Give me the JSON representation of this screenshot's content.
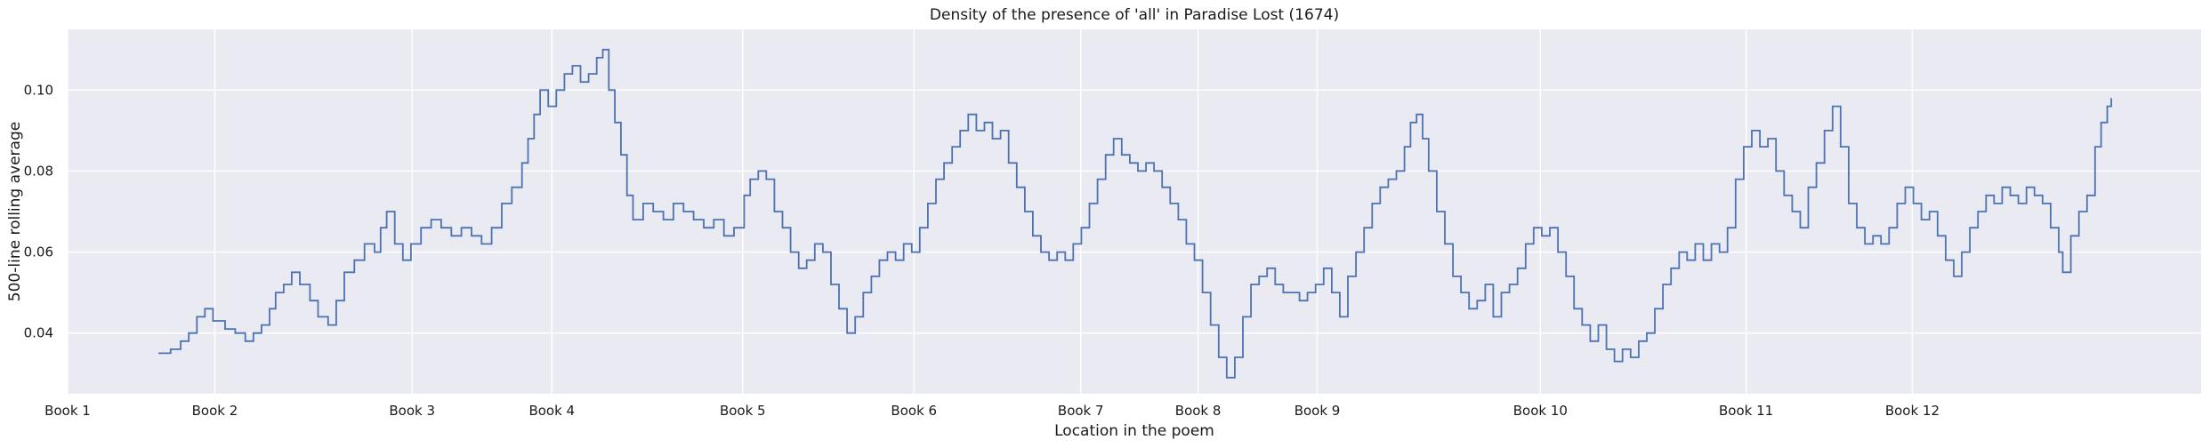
{
  "chart_data": {
    "type": "line",
    "title": "Density of the presence of 'all' in Paradise Lost (1674)",
    "xlabel": "Location in the poem",
    "ylabel": "500-line rolling average",
    "ylim": [
      0.025,
      0.115
    ],
    "xlim": [
      0,
      10565
    ],
    "grid": true,
    "yticks": [
      0.04,
      0.06,
      0.08,
      0.1
    ],
    "ytick_labels": [
      "0.04",
      "0.06",
      "0.08",
      "0.10"
    ],
    "xticks": [
      0,
      729,
      1706,
      2398,
      3343,
      4191,
      5017,
      5598,
      6188,
      7293,
      8312,
      9135
    ],
    "xtick_labels": [
      "Book 1",
      "Book 2",
      "Book 3",
      "Book 4",
      "Book 5",
      "Book 6",
      "Book 7",
      "Book 8",
      "Book 9",
      "Book 10",
      "Book 11",
      "Book 12"
    ],
    "colors": {
      "line": "#4c72b0",
      "plot_bg": "#eaeaf2",
      "grid": "#ffffff"
    },
    "series": [
      {
        "values": [
          [
            450,
            0.035
          ],
          [
            510,
            0.036
          ],
          [
            560,
            0.038
          ],
          [
            600,
            0.04
          ],
          [
            640,
            0.044
          ],
          [
            680,
            0.046
          ],
          [
            720,
            0.043
          ],
          [
            780,
            0.041
          ],
          [
            830,
            0.04
          ],
          [
            880,
            0.038
          ],
          [
            920,
            0.04
          ],
          [
            960,
            0.042
          ],
          [
            1000,
            0.046
          ],
          [
            1030,
            0.05
          ],
          [
            1070,
            0.052
          ],
          [
            1110,
            0.055
          ],
          [
            1150,
            0.052
          ],
          [
            1200,
            0.048
          ],
          [
            1240,
            0.044
          ],
          [
            1290,
            0.042
          ],
          [
            1330,
            0.048
          ],
          [
            1370,
            0.055
          ],
          [
            1420,
            0.058
          ],
          [
            1470,
            0.062
          ],
          [
            1520,
            0.06
          ],
          [
            1550,
            0.066
          ],
          [
            1580,
            0.07
          ],
          [
            1620,
            0.062
          ],
          [
            1660,
            0.058
          ],
          [
            1700,
            0.062
          ],
          [
            1750,
            0.066
          ],
          [
            1800,
            0.068
          ],
          [
            1850,
            0.066
          ],
          [
            1900,
            0.064
          ],
          [
            1950,
            0.066
          ],
          [
            2000,
            0.064
          ],
          [
            2050,
            0.062
          ],
          [
            2100,
            0.066
          ],
          [
            2150,
            0.072
          ],
          [
            2200,
            0.076
          ],
          [
            2250,
            0.082
          ],
          [
            2280,
            0.088
          ],
          [
            2310,
            0.094
          ],
          [
            2340,
            0.1
          ],
          [
            2380,
            0.096
          ],
          [
            2420,
            0.1
          ],
          [
            2460,
            0.104
          ],
          [
            2500,
            0.106
          ],
          [
            2540,
            0.102
          ],
          [
            2580,
            0.104
          ],
          [
            2620,
            0.108
          ],
          [
            2650,
            0.11
          ],
          [
            2680,
            0.1
          ],
          [
            2710,
            0.092
          ],
          [
            2740,
            0.084
          ],
          [
            2770,
            0.074
          ],
          [
            2800,
            0.068
          ],
          [
            2850,
            0.072
          ],
          [
            2900,
            0.07
          ],
          [
            2950,
            0.068
          ],
          [
            3000,
            0.072
          ],
          [
            3050,
            0.07
          ],
          [
            3100,
            0.068
          ],
          [
            3150,
            0.066
          ],
          [
            3200,
            0.068
          ],
          [
            3250,
            0.064
          ],
          [
            3300,
            0.066
          ],
          [
            3350,
            0.074
          ],
          [
            3380,
            0.078
          ],
          [
            3420,
            0.08
          ],
          [
            3460,
            0.078
          ],
          [
            3500,
            0.07
          ],
          [
            3540,
            0.066
          ],
          [
            3580,
            0.06
          ],
          [
            3620,
            0.056
          ],
          [
            3660,
            0.058
          ],
          [
            3700,
            0.062
          ],
          [
            3740,
            0.06
          ],
          [
            3780,
            0.052
          ],
          [
            3820,
            0.046
          ],
          [
            3860,
            0.04
          ],
          [
            3900,
            0.044
          ],
          [
            3940,
            0.05
          ],
          [
            3980,
            0.054
          ],
          [
            4020,
            0.058
          ],
          [
            4060,
            0.06
          ],
          [
            4100,
            0.058
          ],
          [
            4140,
            0.062
          ],
          [
            4180,
            0.06
          ],
          [
            4220,
            0.066
          ],
          [
            4260,
            0.072
          ],
          [
            4300,
            0.078
          ],
          [
            4340,
            0.082
          ],
          [
            4380,
            0.086
          ],
          [
            4420,
            0.09
          ],
          [
            4460,
            0.094
          ],
          [
            4500,
            0.09
          ],
          [
            4540,
            0.092
          ],
          [
            4580,
            0.088
          ],
          [
            4620,
            0.09
          ],
          [
            4660,
            0.082
          ],
          [
            4700,
            0.076
          ],
          [
            4740,
            0.07
          ],
          [
            4780,
            0.064
          ],
          [
            4820,
            0.06
          ],
          [
            4860,
            0.058
          ],
          [
            4900,
            0.06
          ],
          [
            4940,
            0.058
          ],
          [
            4980,
            0.062
          ],
          [
            5020,
            0.066
          ],
          [
            5060,
            0.072
          ],
          [
            5100,
            0.078
          ],
          [
            5140,
            0.084
          ],
          [
            5180,
            0.088
          ],
          [
            5220,
            0.084
          ],
          [
            5260,
            0.082
          ],
          [
            5300,
            0.08
          ],
          [
            5340,
            0.082
          ],
          [
            5380,
            0.08
          ],
          [
            5420,
            0.076
          ],
          [
            5460,
            0.072
          ],
          [
            5500,
            0.068
          ],
          [
            5540,
            0.062
          ],
          [
            5580,
            0.058
          ],
          [
            5620,
            0.05
          ],
          [
            5660,
            0.042
          ],
          [
            5700,
            0.034
          ],
          [
            5740,
            0.029
          ],
          [
            5780,
            0.034
          ],
          [
            5820,
            0.044
          ],
          [
            5860,
            0.052
          ],
          [
            5900,
            0.054
          ],
          [
            5940,
            0.056
          ],
          [
            5980,
            0.052
          ],
          [
            6020,
            0.05
          ],
          [
            6060,
            0.05
          ],
          [
            6100,
            0.048
          ],
          [
            6140,
            0.05
          ],
          [
            6180,
            0.052
          ],
          [
            6220,
            0.056
          ],
          [
            6260,
            0.05
          ],
          [
            6300,
            0.044
          ],
          [
            6340,
            0.054
          ],
          [
            6380,
            0.06
          ],
          [
            6420,
            0.066
          ],
          [
            6460,
            0.072
          ],
          [
            6500,
            0.076
          ],
          [
            6540,
            0.078
          ],
          [
            6580,
            0.08
          ],
          [
            6620,
            0.086
          ],
          [
            6650,
            0.092
          ],
          [
            6680,
            0.094
          ],
          [
            6710,
            0.088
          ],
          [
            6740,
            0.08
          ],
          [
            6780,
            0.07
          ],
          [
            6820,
            0.062
          ],
          [
            6860,
            0.054
          ],
          [
            6900,
            0.05
          ],
          [
            6940,
            0.046
          ],
          [
            6980,
            0.048
          ],
          [
            7020,
            0.052
          ],
          [
            7060,
            0.044
          ],
          [
            7100,
            0.05
          ],
          [
            7140,
            0.052
          ],
          [
            7180,
            0.056
          ],
          [
            7220,
            0.062
          ],
          [
            7260,
            0.066
          ],
          [
            7300,
            0.064
          ],
          [
            7340,
            0.066
          ],
          [
            7380,
            0.06
          ],
          [
            7420,
            0.054
          ],
          [
            7460,
            0.046
          ],
          [
            7500,
            0.042
          ],
          [
            7540,
            0.038
          ],
          [
            7580,
            0.042
          ],
          [
            7620,
            0.036
          ],
          [
            7660,
            0.033
          ],
          [
            7700,
            0.036
          ],
          [
            7740,
            0.034
          ],
          [
            7780,
            0.038
          ],
          [
            7820,
            0.04
          ],
          [
            7860,
            0.046
          ],
          [
            7900,
            0.052
          ],
          [
            7940,
            0.056
          ],
          [
            7980,
            0.06
          ],
          [
            8020,
            0.058
          ],
          [
            8060,
            0.062
          ],
          [
            8100,
            0.058
          ],
          [
            8140,
            0.062
          ],
          [
            8180,
            0.06
          ],
          [
            8220,
            0.066
          ],
          [
            8260,
            0.078
          ],
          [
            8300,
            0.086
          ],
          [
            8340,
            0.09
          ],
          [
            8380,
            0.086
          ],
          [
            8420,
            0.088
          ],
          [
            8460,
            0.08
          ],
          [
            8500,
            0.074
          ],
          [
            8540,
            0.07
          ],
          [
            8580,
            0.066
          ],
          [
            8620,
            0.076
          ],
          [
            8660,
            0.082
          ],
          [
            8700,
            0.09
          ],
          [
            8740,
            0.096
          ],
          [
            8780,
            0.086
          ],
          [
            8820,
            0.072
          ],
          [
            8860,
            0.066
          ],
          [
            8900,
            0.062
          ],
          [
            8940,
            0.064
          ],
          [
            8980,
            0.062
          ],
          [
            9020,
            0.066
          ],
          [
            9060,
            0.072
          ],
          [
            9100,
            0.076
          ],
          [
            9140,
            0.072
          ],
          [
            9180,
            0.068
          ],
          [
            9220,
            0.07
          ],
          [
            9260,
            0.064
          ],
          [
            9300,
            0.058
          ],
          [
            9340,
            0.054
          ],
          [
            9380,
            0.06
          ],
          [
            9420,
            0.066
          ],
          [
            9460,
            0.07
          ],
          [
            9500,
            0.074
          ],
          [
            9540,
            0.072
          ],
          [
            9580,
            0.076
          ],
          [
            9620,
            0.074
          ],
          [
            9660,
            0.072
          ],
          [
            9700,
            0.076
          ],
          [
            9740,
            0.074
          ],
          [
            9780,
            0.072
          ],
          [
            9820,
            0.066
          ],
          [
            9860,
            0.06
          ],
          [
            9880,
            0.055
          ],
          [
            9920,
            0.064
          ],
          [
            9960,
            0.07
          ],
          [
            10000,
            0.074
          ],
          [
            10040,
            0.086
          ],
          [
            10070,
            0.092
          ],
          [
            10100,
            0.096
          ],
          [
            10120,
            0.098
          ]
        ]
      }
    ]
  }
}
